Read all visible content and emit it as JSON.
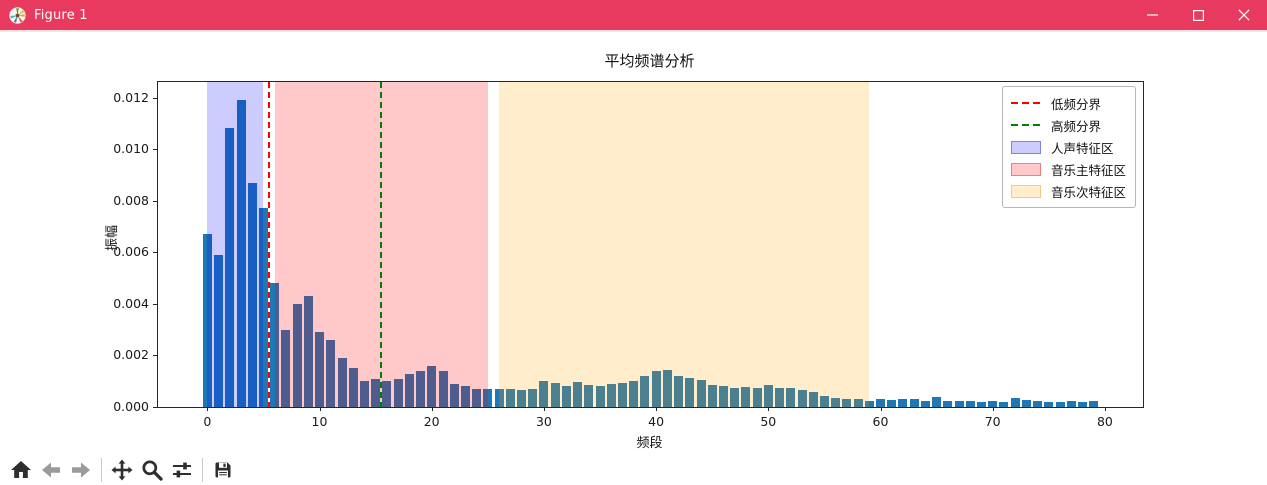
{
  "window": {
    "title": "Figure 1",
    "titlebar_color": "#e83a5f",
    "controls": [
      "minimize",
      "maximize",
      "close"
    ],
    "app_icon": "matplotlib-logo"
  },
  "toolbar": {
    "buttons": [
      {
        "name": "home",
        "icon": "home-icon",
        "enabled": true
      },
      {
        "name": "back",
        "icon": "back-arrow-icon",
        "enabled": false
      },
      {
        "name": "forward",
        "icon": "forward-arrow-icon",
        "enabled": false
      },
      {
        "name": "pan",
        "icon": "pan-arrows-icon",
        "enabled": true
      },
      {
        "name": "zoom",
        "icon": "magnifier-icon",
        "enabled": true
      },
      {
        "name": "configure-subplots",
        "icon": "sliders-icon",
        "enabled": true
      },
      {
        "name": "save",
        "icon": "floppy-disk-icon",
        "enabled": true
      }
    ]
  },
  "chart_data": {
    "type": "bar",
    "title": "平均频谱分析",
    "xlabel": "频段",
    "ylabel": "振幅",
    "bar_color": "#1f77b4",
    "bar_width": 0.8,
    "x_start": 0,
    "values": [
      0.0067,
      0.0059,
      0.0108,
      0.0119,
      0.0087,
      0.0077,
      0.0048,
      0.003,
      0.004,
      0.0043,
      0.0029,
      0.0026,
      0.0019,
      0.0015,
      0.001,
      0.0011,
      0.001,
      0.0011,
      0.0013,
      0.0014,
      0.0016,
      0.0014,
      0.0009,
      0.0008,
      0.0007,
      0.0007,
      0.0007,
      0.0007,
      0.00065,
      0.0007,
      0.001,
      0.00095,
      0.0008,
      0.00098,
      0.00085,
      0.0008,
      0.0009,
      0.00092,
      0.001,
      0.0012,
      0.0014,
      0.00142,
      0.0012,
      0.00112,
      0.00105,
      0.00085,
      0.00082,
      0.00073,
      0.00078,
      0.00075,
      0.00084,
      0.00072,
      0.00075,
      0.00065,
      0.00058,
      0.00043,
      0.00036,
      0.0003,
      0.00032,
      0.00023,
      0.0003,
      0.00026,
      0.00032,
      0.00032,
      0.00023,
      0.00039,
      0.00023,
      0.00023,
      0.00023,
      0.00021,
      0.00023,
      0.00021,
      0.00036,
      0.00027,
      0.00023,
      0.00021,
      0.00021,
      0.00023,
      0.00021,
      0.00023
    ],
    "xticks": [
      0,
      10,
      20,
      30,
      40,
      50,
      60,
      70,
      80
    ],
    "ytick_values": [
      0,
      0.002,
      0.004,
      0.006,
      0.008,
      0.01,
      0.012
    ],
    "ytick_labels": [
      "0.000",
      "0.002",
      "0.004",
      "0.006",
      "0.008",
      "0.010",
      "0.012"
    ],
    "xlim": [
      -4.4,
      83.4
    ],
    "ylim": [
      0,
      0.0126
    ],
    "grid": false,
    "legend_position": "upper right",
    "vlines": [
      {
        "name": "low-freq-boundary-line",
        "x": 5.5,
        "color": "#ff0000",
        "style": "dashed",
        "label": "低频分界"
      },
      {
        "name": "high-freq-boundary-line",
        "x": 15.5,
        "color": "#008000",
        "style": "dashed",
        "label": "高频分界"
      }
    ],
    "regions": [
      {
        "name": "vocal-feature-region",
        "from": 0,
        "to": 5,
        "color": "rgba(0,0,255,0.2)",
        "label": "人声特征区"
      },
      {
        "name": "music-main-feature-region",
        "from": 6,
        "to": 25,
        "color": "rgba(255,0,0,0.21)",
        "label": "音乐主特征区"
      },
      {
        "name": "music-sub-feature-region",
        "from": 26,
        "to": 59,
        "color": "rgba(255,165,0,0.2)",
        "label": "音乐次特征区"
      }
    ],
    "legend": [
      {
        "type": "line",
        "color": "#ff0000",
        "label": "低频分界"
      },
      {
        "type": "line",
        "color": "#008000",
        "label": "高频分界"
      },
      {
        "type": "patch",
        "color": "rgba(0,0,255,0.2)",
        "edge": "rgba(70,70,220,0.55)",
        "label": "人声特征区"
      },
      {
        "type": "patch",
        "color": "rgba(255,0,0,0.21)",
        "edge": "rgba(235,120,120,0.9)",
        "label": "音乐主特征区"
      },
      {
        "type": "patch",
        "color": "rgba(255,165,0,0.2)",
        "edge": "rgba(240,200,130,0.95)",
        "label": "音乐次特征区"
      }
    ]
  }
}
